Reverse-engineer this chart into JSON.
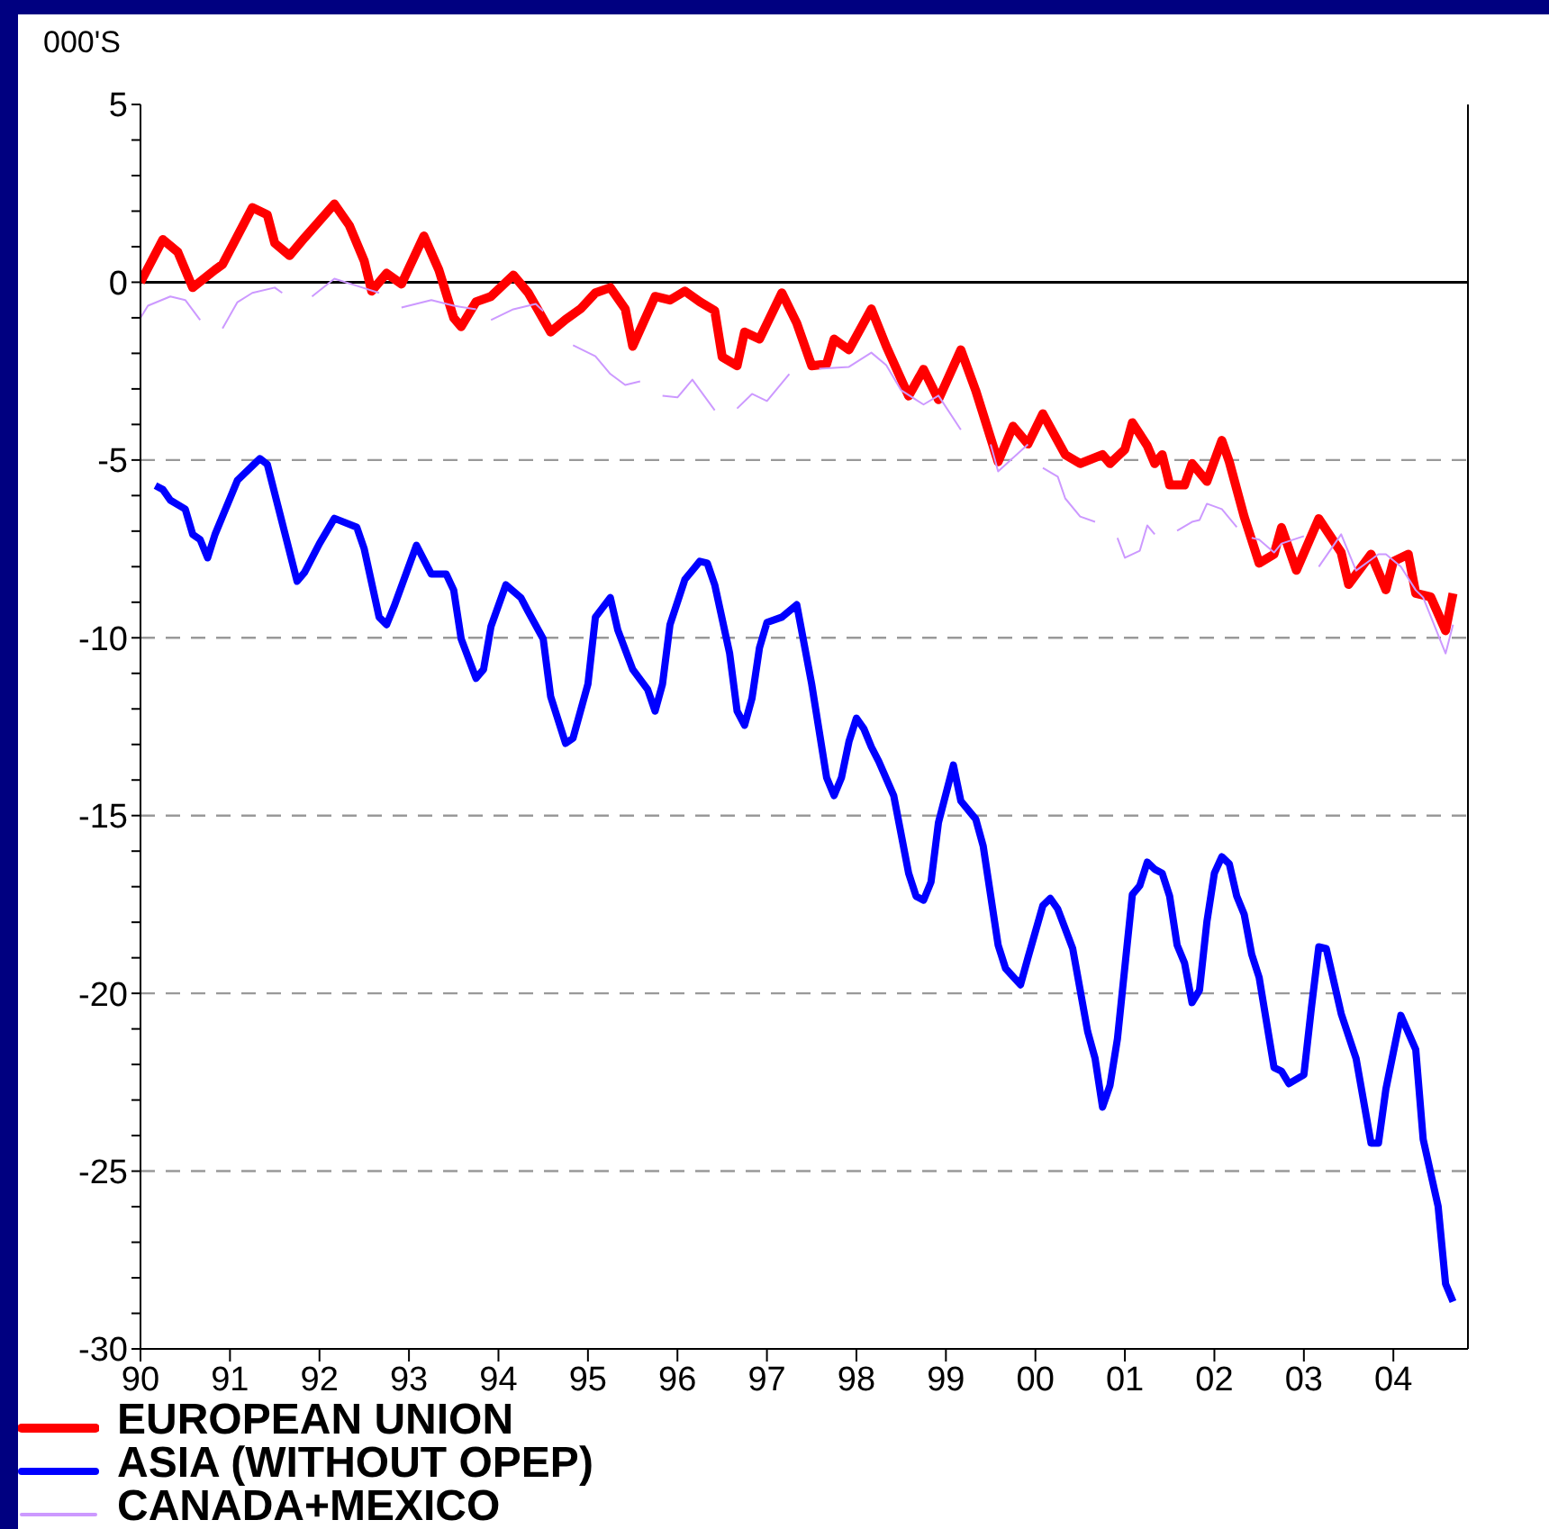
{
  "chart_data": {
    "type": "line",
    "ylabel": "000'S",
    "xlim": [
      "1990-01",
      "2004-11"
    ],
    "ylim": [
      -30,
      5
    ],
    "xticks": [
      {
        "value": "1990",
        "label": "90"
      },
      {
        "value": "1991",
        "label": "91"
      },
      {
        "value": "1992",
        "label": "92"
      },
      {
        "value": "1993",
        "label": "93"
      },
      {
        "value": "1994",
        "label": "94"
      },
      {
        "value": "1995",
        "label": "95"
      },
      {
        "value": "1996",
        "label": "96"
      },
      {
        "value": "1997",
        "label": "97"
      },
      {
        "value": "1998",
        "label": "98"
      },
      {
        "value": "1999",
        "label": "99"
      },
      {
        "value": "2000",
        "label": "00"
      },
      {
        "value": "2001",
        "label": "01"
      },
      {
        "value": "2002",
        "label": "02"
      },
      {
        "value": "2003",
        "label": "03"
      },
      {
        "value": "2004",
        "label": "04"
      }
    ],
    "yticks": [
      5,
      {
        "value": 4,
        "label": null
      },
      {
        "value": 3,
        "label": null
      },
      {
        "value": 2,
        "label": null
      },
      {
        "value": 1,
        "label": null
      },
      0,
      {
        "value": -1,
        "label": null
      },
      {
        "value": -2,
        "label": null
      },
      {
        "value": -3,
        "label": null
      },
      {
        "value": -4,
        "label": null
      },
      -5,
      {
        "value": -6,
        "label": null
      },
      {
        "value": -7,
        "label": null
      },
      {
        "value": -8,
        "label": null
      },
      {
        "value": -9,
        "label": null
      },
      -10,
      {
        "value": -11,
        "label": null
      },
      {
        "value": -12,
        "label": null
      },
      {
        "value": -13,
        "label": null
      },
      {
        "value": -14,
        "label": null
      },
      -15,
      {
        "value": -16,
        "label": null
      },
      {
        "value": -17,
        "label": null
      },
      {
        "value": -18,
        "label": null
      },
      {
        "value": -19,
        "label": null
      },
      -20,
      {
        "value": -21,
        "label": null
      },
      {
        "value": -22,
        "label": null
      },
      {
        "value": -23,
        "label": null
      },
      {
        "value": -24,
        "label": null
      },
      -25,
      {
        "value": -26,
        "label": null
      },
      {
        "value": -27,
        "label": null
      },
      {
        "value": -28,
        "label": null
      },
      {
        "value": -29,
        "label": null
      },
      -30
    ],
    "grid": "y",
    "legend": "bottom left",
    "marker": "none",
    "line_style": "solid",
    "ref_lines": [
      {
        "axis": "y",
        "value": 0,
        "label": null,
        "color": "#000000"
      }
    ],
    "series": [
      {
        "name": "EUROPEAN UNION",
        "color": "#ff0000",
        "x": [
          "1990-01",
          "1990-04",
          "1990-06",
          "1990-08",
          "1990-11",
          "1990-12",
          "1991-04",
          "1991-06",
          "1991-07",
          "1991-09",
          "1991-11",
          "1992-03",
          "1992-05",
          "1992-07",
          "1992-08",
          "1992-10",
          "1992-12",
          "1993-03",
          "1993-05",
          "1993-07",
          "1993-08",
          "1993-10",
          "1993-12",
          "1994-03",
          "1994-05",
          "1994-08",
          "1994-10",
          "1994-12",
          "1995-02",
          "1995-04",
          "1995-06",
          "1995-07",
          "1995-10",
          "1995-12",
          "1996-02",
          "1996-04",
          "1996-06",
          "1996-07",
          "1996-09",
          "1996-10",
          "1996-12",
          "1997-03",
          "1997-05",
          "1997-07",
          "1997-09",
          "1997-10",
          "1997-12",
          "1998-03",
          "1998-05",
          "1998-08",
          "1998-10",
          "1998-12",
          "1999-03",
          "1999-05",
          "1999-08",
          "1999-10",
          "1999-12",
          "2000-02",
          "2000-05",
          "2000-07",
          "2000-10",
          "2000-11",
          "2001-01",
          "2001-02",
          "2001-04",
          "2001-05",
          "2001-06",
          "2001-07",
          "2001-09",
          "2001-10",
          "2001-12",
          "2002-02",
          "2002-03",
          "2002-05",
          "2002-07",
          "2002-09",
          "2002-10",
          "2002-12",
          "2003-03",
          "2003-06",
          "2003-07",
          "2003-10",
          "2003-12",
          "2004-01",
          "2004-03",
          "2004-04",
          "2004-06",
          "2004-08",
          "2004-09"
        ],
        "values": [
          0,
          1.2,
          0.85,
          -0.15,
          0.35,
          0.5,
          2.1,
          1.9,
          1.1,
          0.75,
          1.25,
          2.2,
          1.6,
          0.6,
          -0.25,
          0.25,
          -0.05,
          1.3,
          0.35,
          -1,
          -1.25,
          -0.55,
          -0.4,
          0.2,
          -0.3,
          -1.4,
          -1.05,
          -0.75,
          -0.3,
          -0.15,
          -0.75,
          -1.8,
          -0.4,
          -0.5,
          -0.25,
          -0.55,
          -0.8,
          -2.1,
          -2.35,
          -1.4,
          -1.6,
          -0.3,
          -1.15,
          -2.35,
          -2.3,
          -1.6,
          -1.9,
          -0.75,
          -1.8,
          -3.2,
          -2.45,
          -3.3,
          -1.9,
          -3.05,
          -5.05,
          -4.05,
          -4.55,
          -3.7,
          -4.85,
          -5.1,
          -4.85,
          -5.1,
          -4.7,
          -3.95,
          -4.6,
          -5.1,
          -4.85,
          -5.7,
          -5.7,
          -5.1,
          -5.6,
          -4.45,
          -5.05,
          -6.6,
          -7.9,
          -7.65,
          -6.9,
          -8.1,
          -6.65,
          -7.6,
          -8.5,
          -7.65,
          -8.65,
          -7.85,
          -7.65,
          -8.75,
          -8.85,
          -9.8,
          -8.75
        ]
      },
      {
        "name": "ASIA (WITHOUT OPEP)",
        "color": "#0000ff",
        "x": [
          "1990-03",
          "1990-04",
          "1990-05",
          "1990-07",
          "1990-08",
          "1990-09",
          "1990-10",
          "1990-11",
          "1991-02",
          "1991-05",
          "1991-06",
          "1991-10",
          "1991-11",
          "1992-01",
          "1992-03",
          "1992-06",
          "1992-07",
          "1992-09",
          "1992-10",
          "1992-11",
          "1993-02",
          "1993-04",
          "1993-06",
          "1993-07",
          "1993-08",
          "1993-10",
          "1993-11",
          "1993-12",
          "1994-02",
          "1994-04",
          "1994-05",
          "1994-07",
          "1994-08",
          "1994-10",
          "1994-11",
          "1995-01",
          "1995-02",
          "1995-04",
          "1995-05",
          "1995-07",
          "1995-09",
          "1995-10",
          "1995-11",
          "1995-12",
          "1996-02",
          "1996-04",
          "1996-05",
          "1996-06",
          "1996-08",
          "1996-09",
          "1996-10",
          "1996-11",
          "1996-12",
          "1997-01",
          "1997-03",
          "1997-05",
          "1997-07",
          "1997-09",
          "1997-10",
          "1997-11",
          "1997-12",
          "1998-01",
          "1998-02",
          "1998-03",
          "1998-04",
          "1998-06",
          "1998-08",
          "1998-09",
          "1998-10",
          "1998-11",
          "1998-12",
          "1999-02",
          "1999-03",
          "1999-05",
          "1999-06",
          "1999-08",
          "1999-09",
          "1999-11",
          "1999-12",
          "2000-02",
          "2000-03",
          "2000-04",
          "2000-06",
          "2000-08",
          "2000-09",
          "2000-10",
          "2000-11",
          "2000-12",
          "2001-02",
          "2001-03",
          "2001-04",
          "2001-05",
          "2001-06",
          "2001-07",
          "2001-08",
          "2001-09",
          "2001-10",
          "2001-11",
          "2001-12",
          "2002-01",
          "2002-02",
          "2002-03",
          "2002-04",
          "2002-05",
          "2002-06",
          "2002-07",
          "2002-09",
          "2002-10",
          "2002-11",
          "2003-01",
          "2003-02",
          "2003-03",
          "2003-04",
          "2003-06",
          "2003-08",
          "2003-10",
          "2003-11",
          "2003-12",
          "2004-02",
          "2004-04",
          "2004-05",
          "2004-07",
          "2004-08",
          "2004-09"
        ],
        "values": [
          -5.72,
          -5.83,
          -6.13,
          -6.38,
          -7.09,
          -7.24,
          -7.75,
          -7.09,
          -5.57,
          -4.96,
          -5.12,
          -8.41,
          -8.16,
          -7.35,
          -6.64,
          -6.89,
          -7.5,
          -9.42,
          -9.63,
          -9.12,
          -7.4,
          -8.21,
          -8.21,
          -8.66,
          -10.03,
          -11.14,
          -10.89,
          -9.68,
          -8.51,
          -8.87,
          -9.27,
          -10.03,
          -11.65,
          -12.97,
          -12.82,
          -11.3,
          -9.42,
          -8.87,
          -9.78,
          -10.89,
          -11.45,
          -12.06,
          -11.3,
          -9.63,
          -8.36,
          -7.85,
          -7.9,
          -8.51,
          -10.44,
          -12.06,
          -12.46,
          -11.7,
          -10.28,
          -9.57,
          -9.42,
          -9.07,
          -11.3,
          -13.93,
          -14.44,
          -13.93,
          -12.92,
          -12.26,
          -12.56,
          -13.07,
          -13.48,
          -14.44,
          -16.62,
          -17.27,
          -17.38,
          -16.87,
          -15.2,
          -13.58,
          -14.59,
          -15.1,
          -15.86,
          -18.64,
          -19.3,
          -19.76,
          -19,
          -17.53,
          -17.33,
          -17.63,
          -18.74,
          -21.07,
          -21.83,
          -23.2,
          -22.59,
          -21.28,
          -17.22,
          -16.97,
          -16.31,
          -16.51,
          -16.62,
          -17.27,
          -18.64,
          -19.15,
          -20.26,
          -19.91,
          -17.98,
          -16.62,
          -16.16,
          -16.36,
          -17.27,
          -17.78,
          -18.9,
          -19.55,
          -22.09,
          -22.19,
          -22.54,
          -22.29,
          -20.42,
          -18.69,
          -18.74,
          -20.57,
          -21.83,
          -24.21,
          -24.21,
          -22.69,
          -20.62,
          -21.58,
          -24.11,
          -25.99,
          -28.17,
          -28.67
        ]
      },
      {
        "name": "CANADA+MEXICO",
        "color": "#cc99ff",
        "x": [
          "1990-01",
          "1990-02",
          "1990-05",
          "1990-07",
          "1990-09",
          "1990-10",
          "1990-12",
          "1991-02",
          "1991-04",
          "1991-07",
          "1991-08",
          "1991-10",
          "1991-12",
          "1992-03",
          "1992-06",
          "1992-09",
          "1992-10",
          "1992-12",
          "1993-04",
          "1993-07",
          "1993-10",
          "1993-11",
          "1993-12",
          "1994-03",
          "1994-06",
          "1994-07",
          "1994-09",
          "1994-11",
          "1995-02",
          "1995-04",
          "1995-06",
          "1995-08",
          "1995-09",
          "1995-11",
          "1996-01",
          "1996-03",
          "1996-06",
          "1996-08",
          "1996-09",
          "1996-11",
          "1997-01",
          "1997-04",
          "1997-06",
          "1997-08",
          "1997-12",
          "1998-03",
          "1998-05",
          "1998-07",
          "1998-10",
          "1998-12",
          "1999-03",
          "1999-05",
          "1999-07",
          "1999-08",
          "1999-12",
          "2000-01",
          "2000-02",
          "2000-04",
          "2000-05",
          "2000-07",
          "2000-09",
          "2000-10",
          "2000-12",
          "2001-01",
          "2001-03",
          "2001-04",
          "2001-05",
          "2001-07",
          "2001-08",
          "2001-10",
          "2001-11",
          "2001-12",
          "2002-02",
          "2002-04",
          "2002-05",
          "2002-06",
          "2002-07",
          "2002-09",
          "2002-10",
          "2003-01",
          "2003-02",
          "2003-03",
          "2003-06",
          "2003-08",
          "2003-11",
          "2003-12",
          "2004-02",
          "2004-04",
          "2004-05",
          "2004-08",
          "2004-09"
        ],
        "values": [
          -1,
          -0.66,
          -0.4,
          -0.5,
          -1.06,
          null,
          -1.3,
          -0.56,
          -0.3,
          -0.15,
          -0.3,
          null,
          -0.4,
          0.1,
          -0.1,
          -0.3,
          null,
          -0.71,
          -0.5,
          -0.66,
          -0.76,
          null,
          -1.06,
          -0.76,
          -0.61,
          -0.81,
          null,
          -1.77,
          -2.08,
          -2.58,
          -2.89,
          -2.79,
          null,
          -3.19,
          -3.24,
          -2.74,
          -3.6,
          null,
          -3.55,
          -3.14,
          -3.34,
          -2.58,
          null,
          -2.43,
          -2.38,
          -1.98,
          -2.33,
          -3.04,
          -3.44,
          -3.19,
          -4.15,
          null,
          -4.56,
          -5.32,
          -4.56,
          null,
          -5.22,
          -5.47,
          -6.08,
          -6.59,
          -6.74,
          null,
          -7.19,
          -7.75,
          -7.55,
          -6.84,
          -7.09,
          null,
          -6.99,
          -6.74,
          -6.69,
          -6.23,
          -6.38,
          -6.89,
          null,
          -7.19,
          -7.24,
          -7.6,
          -7.35,
          -7.14,
          null,
          -8,
          -7.09,
          -8.11,
          -7.65,
          -7.65,
          -8,
          -8.66,
          -8.87,
          -10.44,
          -9.63
        ]
      }
    ]
  }
}
